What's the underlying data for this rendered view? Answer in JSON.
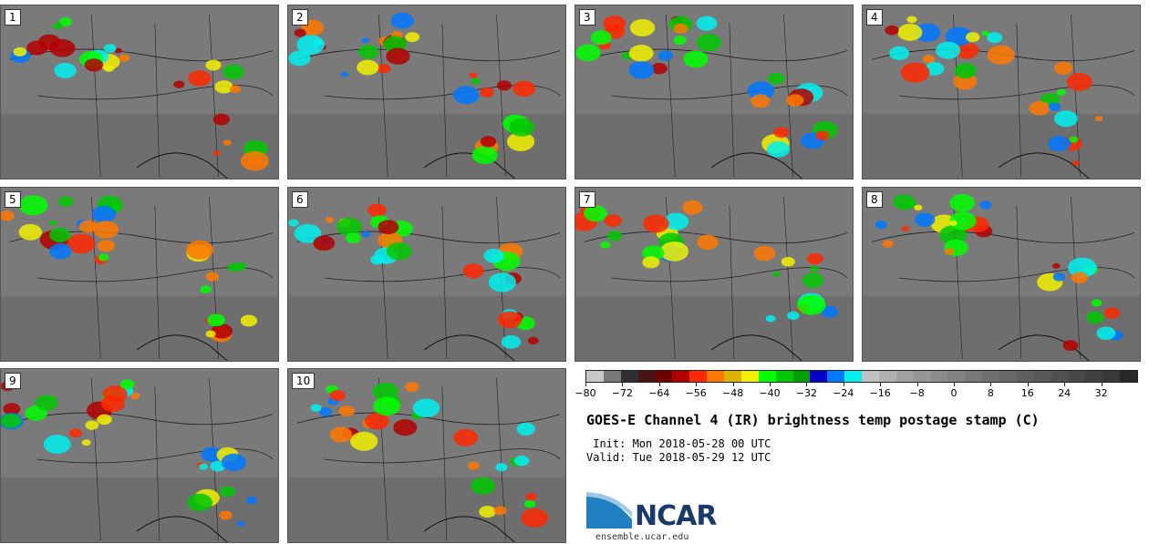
{
  "panels": [
    {
      "label": "1"
    },
    {
      "label": "2"
    },
    {
      "label": "3"
    },
    {
      "label": "4"
    },
    {
      "label": "5"
    },
    {
      "label": "6"
    },
    {
      "label": "7"
    },
    {
      "label": "8"
    },
    {
      "label": "9"
    },
    {
      "label": "10"
    }
  ],
  "colorbar": {
    "colors": [
      "#c8c8c8",
      "#787878",
      "#303030",
      "#4a1414",
      "#6e0000",
      "#b40000",
      "#ff2800",
      "#ff7800",
      "#dcb400",
      "#f0f000",
      "#00ff00",
      "#00c800",
      "#00a000",
      "#0000c8",
      "#0078ff",
      "#00f0f0",
      "#c0c0c0",
      "#b0b0b0",
      "#a0a0a0",
      "#969696",
      "#8c8c8c",
      "#828282",
      "#787878",
      "#707070",
      "#686868",
      "#606060",
      "#585858",
      "#505050",
      "#484848",
      "#404040",
      "#383838",
      "#282828"
    ],
    "tick_labels": [
      "−80",
      "−72",
      "−64",
      "−56",
      "−48",
      "−40",
      "−32",
      "−24",
      "−16",
      "−8",
      "0",
      "8",
      "16",
      "24",
      "32"
    ],
    "tick_values": [
      -80,
      -72,
      -64,
      -56,
      -48,
      -40,
      -32,
      -24,
      -16,
      -8,
      0,
      8,
      16,
      24,
      32
    ],
    "min": -80,
    "max": 40
  },
  "title": "GOES-E Channel 4 (IR) brightness temp postage stamp (C)",
  "init_line": " Init: Mon 2018-05-28 00 UTC",
  "valid_line": "Valid: Tue 2018-05-29 12 UTC",
  "logo_text": "NCAR",
  "site": "ensemble.ucar.edu"
}
